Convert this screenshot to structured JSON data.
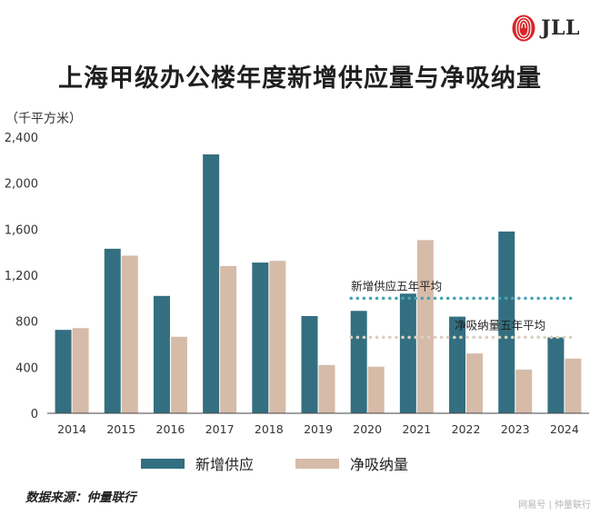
{
  "brand": {
    "logo_text": "JLL",
    "logo_color": "#d7262a"
  },
  "title": "上海甲级办公楼年度新增供应量与净吸纳量",
  "unit_label": "（千平方米）",
  "source": "数据来源：仲量联行",
  "watermark": "网易号 | 仲量联行",
  "colors": {
    "supply": "#336f80",
    "absorption": "#d6bba9",
    "supply_avg_line": "#4aa3b4",
    "absorption_avg_line": "#d9d0bf",
    "axis": "#444444"
  },
  "chart_data": {
    "type": "bar",
    "categories": [
      "2014",
      "2015",
      "2016",
      "2017",
      "2018",
      "2019",
      "2020",
      "2021",
      "2022",
      "2023",
      "2024"
    ],
    "series": [
      {
        "name": "新增供应",
        "values": [
          725,
          1430,
          1020,
          2250,
          1310,
          845,
          890,
          1040,
          840,
          1580,
          660
        ]
      },
      {
        "name": "净吸纳量",
        "values": [
          740,
          1370,
          665,
          1280,
          1325,
          420,
          405,
          1505,
          520,
          380,
          475
        ]
      }
    ],
    "ylim": [
      0,
      2400
    ],
    "yticks": [
      "0",
      "400",
      "800",
      "1,200",
      "1,600",
      "2,000",
      "2,400"
    ],
    "ytick_values": [
      0,
      400,
      800,
      1200,
      1600,
      2000,
      2400
    ],
    "reference_lines": [
      {
        "label": "新增供应五年平均",
        "value": 1000,
        "from_category": "2020",
        "series": "supply"
      },
      {
        "label": "净吸纳量五年平均",
        "value": 660,
        "from_category": "2020",
        "series": "absorption"
      }
    ],
    "legend": {
      "position": "bottom",
      "items": [
        "新增供应",
        "净吸纳量"
      ]
    },
    "grid": false
  }
}
